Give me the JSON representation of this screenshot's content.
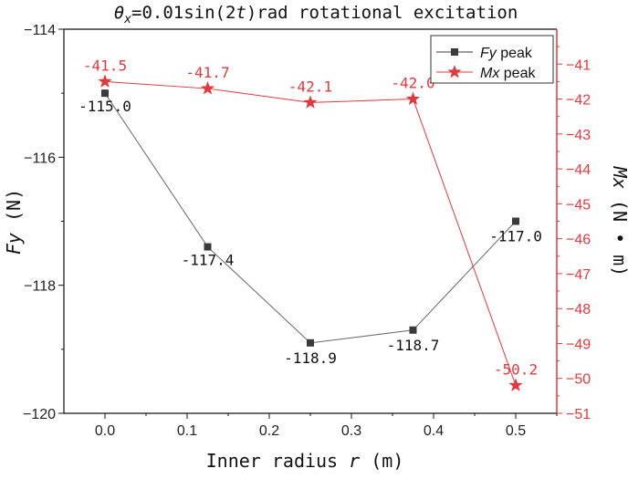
{
  "chart_data": {
    "type": "line",
    "title_parts": {
      "theta": "θ",
      "sub": "x",
      "eq": "=0.01sin(2",
      "t": "t",
      "rest": ")rad rotational excitation"
    },
    "xlabel": "Inner radius",
    "xlabel_var": "r",
    "xlabel_unit": "(m)",
    "ylabel": "Fy",
    "ylabel_unit": "(N)",
    "y2label": "Mx",
    "y2label_unit": "(N • m)",
    "x": [
      0.0,
      0.125,
      0.25,
      0.375,
      0.5
    ],
    "xlim": [
      -0.05,
      0.55
    ],
    "xticks": [
      0.0,
      0.1,
      0.2,
      0.3,
      0.4,
      0.5
    ],
    "xtick_labels": [
      "0.0",
      "0.1",
      "0.2",
      "0.3",
      "0.4",
      "0.5"
    ],
    "ylim": [
      -120,
      -114
    ],
    "yticks": [
      -120,
      -118,
      -116,
      -114
    ],
    "ytick_labels": [
      "−120",
      "−118",
      "−116",
      "−114"
    ],
    "y2lim": [
      -51,
      -40
    ],
    "y2ticks": [
      -51,
      -50,
      -49,
      -48,
      -47,
      -46,
      -45,
      -44,
      -43,
      -42,
      -41
    ],
    "y2tick_labels": [
      "−51",
      "−50",
      "−49",
      "−48",
      "−47",
      "−46",
      "−45",
      "−44",
      "−43",
      "−42",
      "−41"
    ],
    "grid": false,
    "legend_position": "top-right",
    "series": [
      {
        "name": "Fy",
        "name_suffix": "peak",
        "axis": "left",
        "color": "#3a3a3a",
        "marker": "square",
        "values": [
          -115.0,
          -117.4,
          -118.9,
          -118.7,
          -117.0
        ],
        "labels": [
          "-115.0",
          "-117.4",
          "-118.9",
          "-118.7",
          "-117.0"
        ]
      },
      {
        "name": "Mx",
        "name_suffix": "peak",
        "axis": "right",
        "color": "#e0393e",
        "marker": "star",
        "values": [
          -41.5,
          -41.7,
          -42.1,
          -42.0,
          -50.2
        ],
        "labels": [
          "-41.5",
          "-41.7",
          "-42.1",
          "-42.0",
          "-50.2"
        ]
      }
    ]
  }
}
